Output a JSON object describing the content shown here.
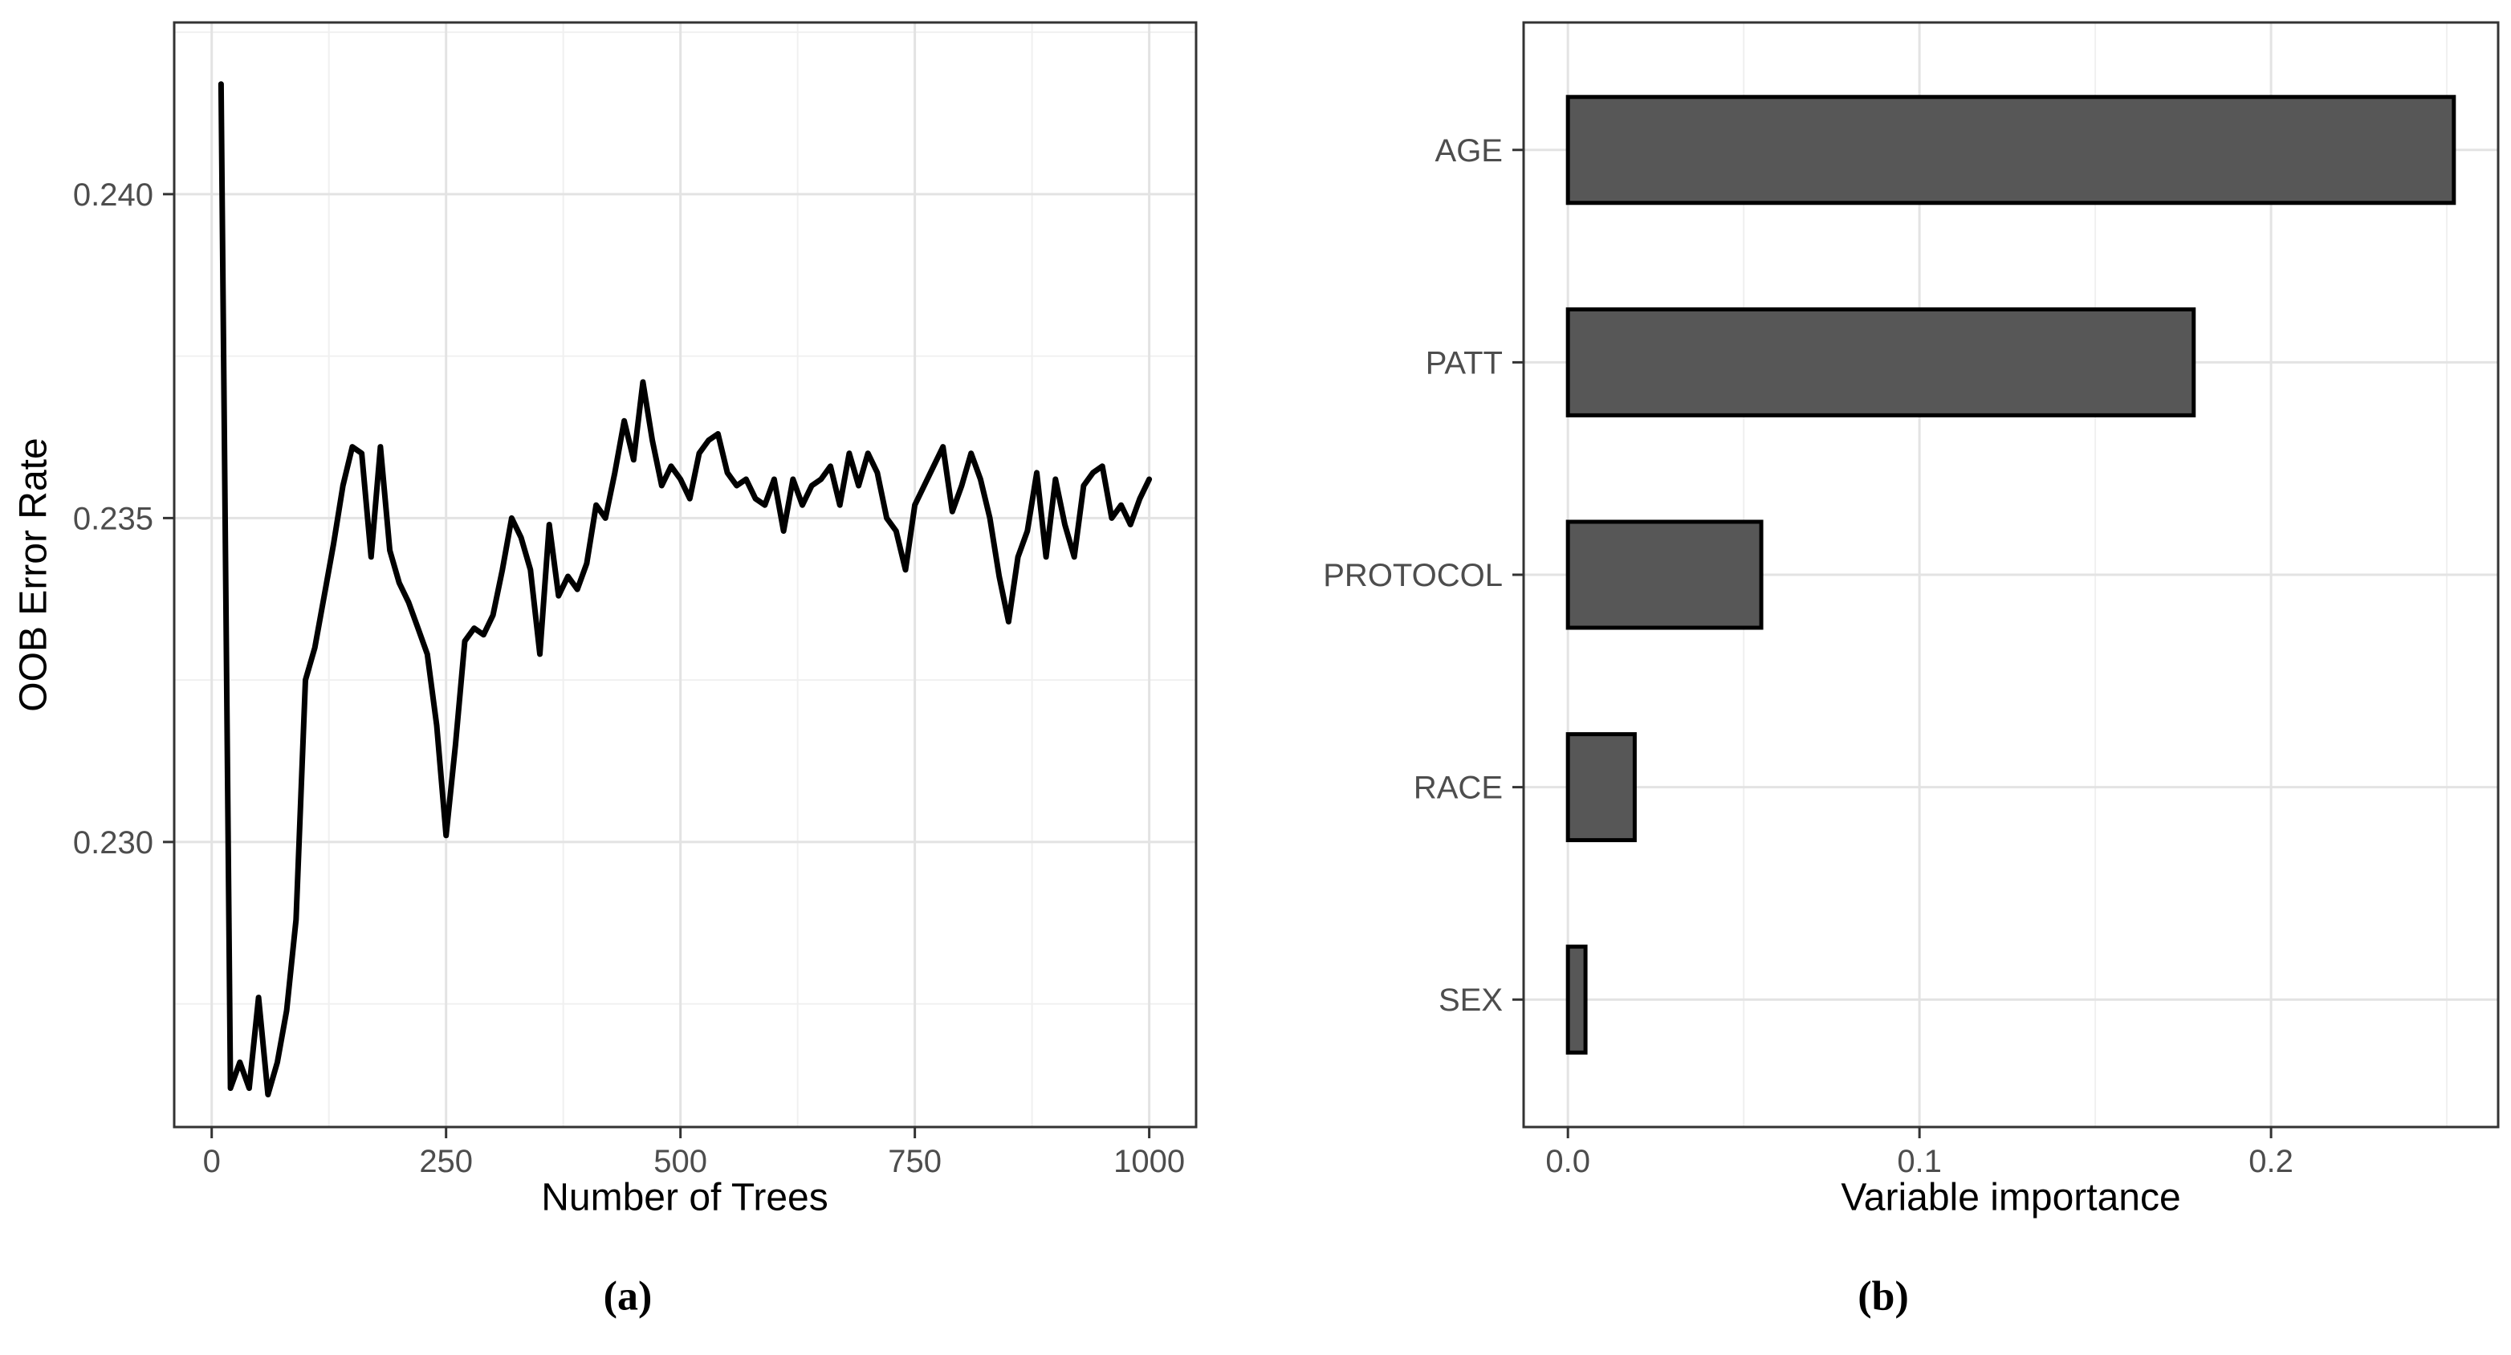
{
  "figure": {
    "panels": {
      "a": {
        "caption": "(a)",
        "xlabel": "Number of Trees",
        "ylabel": "OOB Error Rate"
      },
      "b": {
        "caption": "(b)",
        "xlabel": "Variable importance",
        "ylabel": ""
      }
    },
    "style": {
      "background": "#ffffff",
      "tick_label_color": "#4d4d4d",
      "axis_title_color": "#000000",
      "grid_major_color": "#e3e3e3",
      "grid_minor_color": "#f0f0f0",
      "panel_border_color": "#333333",
      "tick_mark_color": "#333333",
      "line_color": "#000000",
      "bar_fill": "#575757",
      "bar_stroke": "#000000"
    }
  },
  "chart_data": [
    {
      "type": "line",
      "title": "",
      "xlabel": "Number of Trees",
      "ylabel": "OOB Error Rate",
      "legend": "none",
      "grid": true,
      "xlim": [
        -40,
        1050
      ],
      "ylim": [
        0.2256,
        0.24265
      ],
      "x_ticks": [
        0,
        250,
        500,
        750,
        1000
      ],
      "x_tick_labels": [
        "0",
        "250",
        "500",
        "750",
        "1000"
      ],
      "x_minor_ticks": [
        125,
        375,
        625,
        875
      ],
      "y_ticks": [
        0.23,
        0.235,
        0.24
      ],
      "y_tick_labels": [
        "0.230",
        "0.235",
        "0.240"
      ],
      "y_minor_ticks": [
        0.2275,
        0.2325,
        0.2375,
        0.2425
      ],
      "x": [
        10,
        20,
        30,
        40,
        50,
        60,
        70,
        80,
        90,
        100,
        110,
        120,
        130,
        140,
        150,
        160,
        170,
        180,
        190,
        200,
        210,
        220,
        230,
        240,
        250,
        260,
        270,
        280,
        290,
        300,
        310,
        320,
        330,
        340,
        350,
        360,
        370,
        380,
        390,
        400,
        410,
        420,
        430,
        440,
        450,
        460,
        470,
        480,
        490,
        500,
        510,
        520,
        530,
        540,
        550,
        560,
        570,
        580,
        590,
        600,
        610,
        620,
        630,
        640,
        650,
        660,
        670,
        680,
        690,
        700,
        710,
        720,
        730,
        740,
        750,
        760,
        770,
        780,
        790,
        800,
        810,
        820,
        830,
        840,
        850,
        860,
        870,
        880,
        890,
        900,
        910,
        920,
        930,
        940,
        950,
        960,
        970,
        980,
        990,
        1000
      ],
      "y": [
        0.2417,
        0.2262,
        0.2266,
        0.2262,
        0.2276,
        0.2261,
        0.2266,
        0.2274,
        0.2288,
        0.2325,
        0.233,
        0.2338,
        0.2346,
        0.2355,
        0.2361,
        0.236,
        0.2344,
        0.2361,
        0.2345,
        0.234,
        0.2337,
        0.2333,
        0.2329,
        0.2318,
        0.2301,
        0.2315,
        0.2331,
        0.2333,
        0.2332,
        0.2335,
        0.2342,
        0.235,
        0.2347,
        0.2342,
        0.2329,
        0.2349,
        0.2338,
        0.2341,
        0.2339,
        0.2343,
        0.2352,
        0.235,
        0.2357,
        0.2365,
        0.2359,
        0.2371,
        0.2362,
        0.2355,
        0.2358,
        0.2356,
        0.2353,
        0.236,
        0.2362,
        0.2363,
        0.2357,
        0.2355,
        0.2356,
        0.2353,
        0.2352,
        0.2356,
        0.2348,
        0.2356,
        0.2352,
        0.2355,
        0.2356,
        0.2358,
        0.2352,
        0.236,
        0.2355,
        0.236,
        0.2357,
        0.235,
        0.2348,
        0.2342,
        0.2352,
        0.2355,
        0.2358,
        0.2361,
        0.2351,
        0.2355,
        0.236,
        0.2356,
        0.235,
        0.2341,
        0.2334,
        0.2344,
        0.2348,
        0.2357,
        0.2344,
        0.2356,
        0.2349,
        0.2344,
        0.2355,
        0.2357,
        0.2358,
        0.235,
        0.2352,
        0.2349,
        0.2353,
        0.2356
      ]
    },
    {
      "type": "bar",
      "orientation": "horizontal",
      "title": "",
      "xlabel": "Variable importance",
      "ylabel": "",
      "legend": "none",
      "grid": true,
      "categories": [
        "AGE",
        "PATT",
        "PROTOCOL",
        "RACE",
        "SEX"
      ],
      "values": [
        0.252,
        0.178,
        0.055,
        0.019,
        0.005
      ],
      "xlim": [
        -0.0126,
        0.2646
      ],
      "x_ticks": [
        0.0,
        0.1,
        0.2
      ],
      "x_tick_labels": [
        "0.0",
        "0.1",
        "0.2"
      ],
      "x_minor_ticks": [
        0.05,
        0.15,
        0.25
      ]
    }
  ]
}
